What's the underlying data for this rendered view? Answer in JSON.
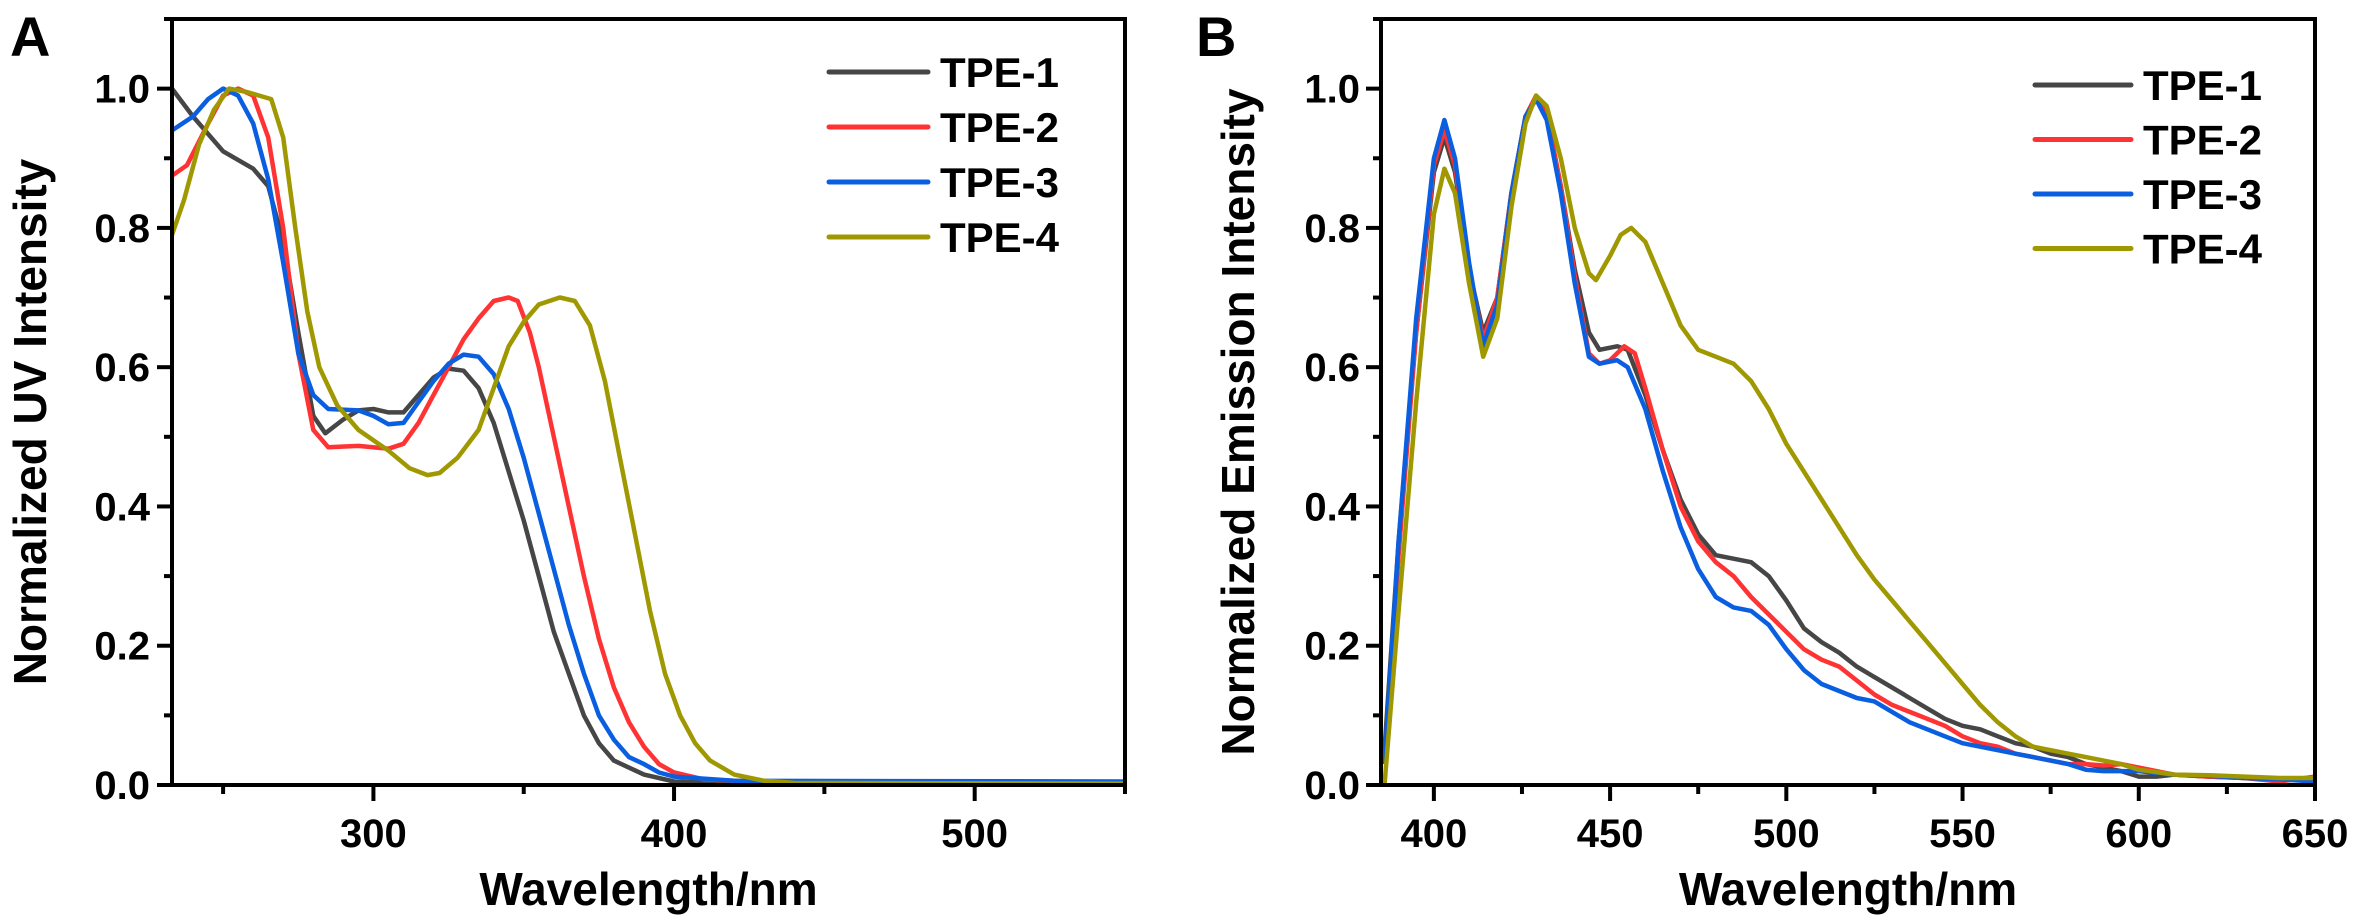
{
  "chart_data": [
    {
      "panel": "A",
      "type": "line",
      "xlabel": "Wavelength/nm",
      "ylabel": "Normalized UV Intensity",
      "xlim": [
        233,
        550
      ],
      "ylim": [
        0,
        1.1
      ],
      "xticks": [
        300,
        400,
        500
      ],
      "xtick_labels": [
        "300",
        "400",
        "500"
      ],
      "yticks": [
        0.0,
        0.2,
        0.4,
        0.6,
        0.8,
        1.0
      ],
      "ytick_labels": [
        "0.0",
        "0.2",
        "0.4",
        "0.6",
        "0.8",
        "1.0"
      ],
      "grid": false,
      "legend": "top-right",
      "series": [
        {
          "name": "TPE-1",
          "color": "#464646",
          "x": [
            233,
            240,
            250,
            260,
            265,
            270,
            275,
            280,
            284,
            290,
            295,
            300,
            305,
            310,
            315,
            320,
            325,
            330,
            335,
            340,
            345,
            350,
            355,
            360,
            365,
            370,
            375,
            380,
            390,
            400,
            420,
            550
          ],
          "y": [
            1.0,
            0.96,
            0.91,
            0.885,
            0.86,
            0.78,
            0.65,
            0.53,
            0.505,
            0.525,
            0.538,
            0.54,
            0.535,
            0.535,
            0.56,
            0.585,
            0.598,
            0.595,
            0.57,
            0.52,
            0.45,
            0.38,
            0.3,
            0.22,
            0.16,
            0.1,
            0.06,
            0.035,
            0.015,
            0.005,
            0.002,
            0.002
          ]
        },
        {
          "name": "TPE-2",
          "color": "#ff3333",
          "x": [
            233,
            238,
            245,
            250,
            255,
            260,
            265,
            270,
            275,
            280,
            285,
            295,
            305,
            310,
            315,
            320,
            325,
            330,
            335,
            340,
            345,
            348,
            352,
            355,
            360,
            365,
            370,
            375,
            380,
            385,
            390,
            395,
            400,
            410,
            430,
            550
          ],
          "y": [
            0.875,
            0.89,
            0.95,
            0.99,
            1.0,
            0.99,
            0.93,
            0.8,
            0.62,
            0.51,
            0.485,
            0.487,
            0.483,
            0.49,
            0.52,
            0.56,
            0.6,
            0.64,
            0.67,
            0.695,
            0.7,
            0.695,
            0.65,
            0.6,
            0.5,
            0.4,
            0.3,
            0.21,
            0.14,
            0.09,
            0.055,
            0.03,
            0.018,
            0.008,
            0.004,
            0.003
          ]
        },
        {
          "name": "TPE-3",
          "color": "#0a5fe0",
          "x": [
            233,
            240,
            245,
            250,
            255,
            260,
            265,
            270,
            275,
            280,
            285,
            295,
            300,
            305,
            310,
            315,
            320,
            325,
            330,
            335,
            340,
            345,
            350,
            355,
            360,
            365,
            370,
            375,
            380,
            385,
            390,
            395,
            400,
            420,
            550
          ],
          "y": [
            0.94,
            0.96,
            0.985,
            1.0,
            0.99,
            0.95,
            0.87,
            0.75,
            0.62,
            0.56,
            0.54,
            0.538,
            0.53,
            0.518,
            0.52,
            0.55,
            0.58,
            0.605,
            0.618,
            0.615,
            0.59,
            0.54,
            0.47,
            0.39,
            0.31,
            0.23,
            0.16,
            0.1,
            0.065,
            0.04,
            0.03,
            0.018,
            0.012,
            0.006,
            0.005
          ]
        },
        {
          "name": "TPE-4",
          "color": "#a09800",
          "x": [
            233,
            237,
            242,
            247,
            252,
            258,
            262,
            266,
            270,
            274,
            278,
            282,
            288,
            295,
            305,
            312,
            318,
            322,
            328,
            335,
            340,
            345,
            350,
            355,
            362,
            367,
            372,
            377,
            382,
            387,
            392,
            397,
            402,
            407,
            412,
            420,
            430,
            440,
            550
          ],
          "y": [
            0.79,
            0.84,
            0.92,
            0.97,
            1.0,
            0.995,
            0.99,
            0.985,
            0.93,
            0.8,
            0.68,
            0.6,
            0.545,
            0.51,
            0.48,
            0.455,
            0.445,
            0.448,
            0.47,
            0.51,
            0.57,
            0.63,
            0.665,
            0.69,
            0.7,
            0.695,
            0.66,
            0.58,
            0.47,
            0.36,
            0.25,
            0.16,
            0.1,
            0.06,
            0.035,
            0.015,
            0.006,
            0.003,
            0.002
          ]
        }
      ]
    },
    {
      "panel": "B",
      "type": "line",
      "xlabel": "Wavelength/nm",
      "ylabel": "Normalized Emission Intensity",
      "xlim": [
        385,
        650
      ],
      "ylim": [
        0,
        1.1
      ],
      "xticks": [
        400,
        450,
        500,
        550,
        600,
        650
      ],
      "xtick_labels": [
        "400",
        "450",
        "500",
        "550",
        "600",
        "650"
      ],
      "yticks": [
        0.0,
        0.2,
        0.4,
        0.6,
        0.8,
        1.0
      ],
      "ytick_labels": [
        "0.0",
        "0.2",
        "0.4",
        "0.6",
        "0.8",
        "1.0"
      ],
      "grid": false,
      "legend": "top-right",
      "series": [
        {
          "name": "TPE-1",
          "color": "#464646",
          "x": [
            386,
            390,
            395,
            400,
            403,
            406,
            410,
            414,
            418,
            422,
            426,
            429,
            432,
            436,
            440,
            444,
            447,
            452,
            455,
            460,
            465,
            470,
            475,
            480,
            485,
            490,
            495,
            500,
            505,
            510,
            515,
            520,
            525,
            530,
            535,
            540,
            545,
            550,
            555,
            560,
            565,
            570,
            575,
            580,
            585,
            590,
            595,
            600,
            605,
            610,
            620,
            630,
            640,
            650
          ],
          "y": [
            0.05,
            0.35,
            0.65,
            0.88,
            0.93,
            0.88,
            0.74,
            0.65,
            0.7,
            0.85,
            0.96,
            0.985,
            0.96,
            0.86,
            0.74,
            0.65,
            0.625,
            0.63,
            0.625,
            0.56,
            0.48,
            0.41,
            0.36,
            0.33,
            0.325,
            0.32,
            0.3,
            0.265,
            0.225,
            0.205,
            0.19,
            0.17,
            0.155,
            0.14,
            0.125,
            0.11,
            0.095,
            0.085,
            0.08,
            0.07,
            0.06,
            0.055,
            0.045,
            0.04,
            0.03,
            0.025,
            0.02,
            0.012,
            0.012,
            0.015,
            0.012,
            0.01,
            0.008,
            0.008
          ]
        },
        {
          "name": "TPE-2",
          "color": "#ff3333",
          "x": [
            386,
            390,
            395,
            400,
            403,
            406,
            410,
            414,
            418,
            422,
            426,
            429,
            432,
            436,
            440,
            444,
            447,
            450,
            454,
            457,
            460,
            465,
            470,
            475,
            480,
            485,
            490,
            495,
            500,
            505,
            510,
            515,
            520,
            525,
            530,
            535,
            540,
            545,
            550,
            555,
            560,
            565,
            570,
            575,
            580,
            585,
            590,
            595,
            600,
            605,
            610,
            620,
            630,
            640,
            650
          ],
          "y": [
            0.03,
            0.33,
            0.65,
            0.89,
            0.94,
            0.89,
            0.74,
            0.64,
            0.7,
            0.85,
            0.96,
            0.99,
            0.965,
            0.86,
            0.73,
            0.62,
            0.605,
            0.61,
            0.63,
            0.62,
            0.57,
            0.48,
            0.4,
            0.35,
            0.32,
            0.3,
            0.27,
            0.245,
            0.22,
            0.195,
            0.18,
            0.17,
            0.15,
            0.13,
            0.115,
            0.105,
            0.095,
            0.085,
            0.07,
            0.06,
            0.055,
            0.045,
            0.04,
            0.035,
            0.03,
            0.03,
            0.028,
            0.03,
            0.025,
            0.02,
            0.015,
            0.012,
            0.01,
            0.005,
            0.012
          ]
        },
        {
          "name": "TPE-3",
          "color": "#0a5fe0",
          "x": [
            386,
            390,
            395,
            400,
            403,
            406,
            410,
            414,
            418,
            422,
            426,
            429,
            432,
            436,
            440,
            444,
            447,
            452,
            455,
            460,
            465,
            470,
            475,
            480,
            485,
            490,
            495,
            500,
            505,
            510,
            515,
            520,
            525,
            530,
            535,
            540,
            545,
            550,
            555,
            560,
            565,
            570,
            575,
            580,
            585,
            590,
            600,
            610,
            620,
            630,
            640,
            650
          ],
          "y": [
            0.03,
            0.35,
            0.67,
            0.9,
            0.955,
            0.9,
            0.75,
            0.63,
            0.69,
            0.85,
            0.96,
            0.985,
            0.955,
            0.85,
            0.72,
            0.615,
            0.605,
            0.61,
            0.6,
            0.54,
            0.45,
            0.37,
            0.31,
            0.27,
            0.255,
            0.25,
            0.23,
            0.195,
            0.165,
            0.145,
            0.135,
            0.125,
            0.12,
            0.105,
            0.09,
            0.08,
            0.07,
            0.06,
            0.055,
            0.05,
            0.045,
            0.04,
            0.035,
            0.03,
            0.022,
            0.02,
            0.02,
            0.015,
            0.013,
            0.01,
            0.008,
            0.005
          ]
        },
        {
          "name": "TPE-4",
          "color": "#a09800",
          "x": [
            386,
            390,
            395,
            400,
            403,
            406,
            410,
            414,
            418,
            422,
            426,
            429,
            432,
            436,
            440,
            444,
            446,
            450,
            453,
            456,
            460,
            465,
            470,
            475,
            480,
            485,
            490,
            495,
            500,
            505,
            510,
            515,
            520,
            525,
            530,
            535,
            540,
            545,
            550,
            555,
            560,
            565,
            570,
            575,
            580,
            585,
            590,
            595,
            600,
            610,
            620,
            630,
            640,
            650
          ],
          "y": [
            0.0,
            0.25,
            0.55,
            0.82,
            0.885,
            0.85,
            0.72,
            0.615,
            0.67,
            0.83,
            0.95,
            0.99,
            0.975,
            0.9,
            0.8,
            0.735,
            0.725,
            0.76,
            0.79,
            0.8,
            0.78,
            0.72,
            0.66,
            0.625,
            0.615,
            0.605,
            0.58,
            0.54,
            0.49,
            0.45,
            0.41,
            0.37,
            0.33,
            0.295,
            0.265,
            0.235,
            0.205,
            0.175,
            0.145,
            0.115,
            0.09,
            0.07,
            0.055,
            0.05,
            0.045,
            0.04,
            0.035,
            0.03,
            0.022,
            0.015,
            0.014,
            0.012,
            0.01,
            0.01
          ]
        }
      ]
    }
  ]
}
